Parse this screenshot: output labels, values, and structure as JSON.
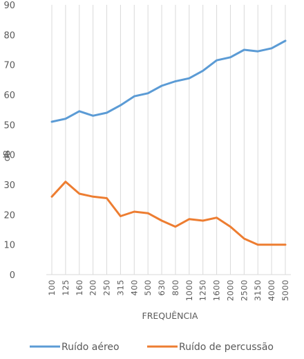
{
  "chart_data": {
    "type": "line",
    "title": "",
    "xlabel": "FREQUÊNCIA",
    "ylabel": "dB",
    "ylim": [
      0,
      90
    ],
    "yticks": [
      0,
      10,
      20,
      30,
      40,
      50,
      60,
      70,
      80,
      90
    ],
    "grid": "vertical",
    "legend_position": "bottom",
    "categories": [
      "100",
      "125",
      "160",
      "200",
      "250",
      "315",
      "400",
      "500",
      "630",
      "800",
      "1000",
      "1250",
      "1600",
      "2000",
      "2500",
      "3150",
      "4000",
      "5000"
    ],
    "series": [
      {
        "name": "Ruído aéreo",
        "color": "#5B9BD5",
        "values": [
          51,
          52,
          54.5,
          53,
          54,
          56.5,
          59.5,
          60.5,
          63,
          64.5,
          65.5,
          68,
          71.5,
          72.5,
          75,
          74.5,
          75.5,
          78
        ]
      },
      {
        "name": "Ruído de percussão",
        "color": "#ED7D31",
        "values": [
          26,
          31,
          27,
          26,
          25.5,
          19.5,
          21,
          20.5,
          18,
          16,
          18.5,
          18,
          19,
          16,
          12,
          10,
          10,
          10
        ]
      }
    ]
  }
}
